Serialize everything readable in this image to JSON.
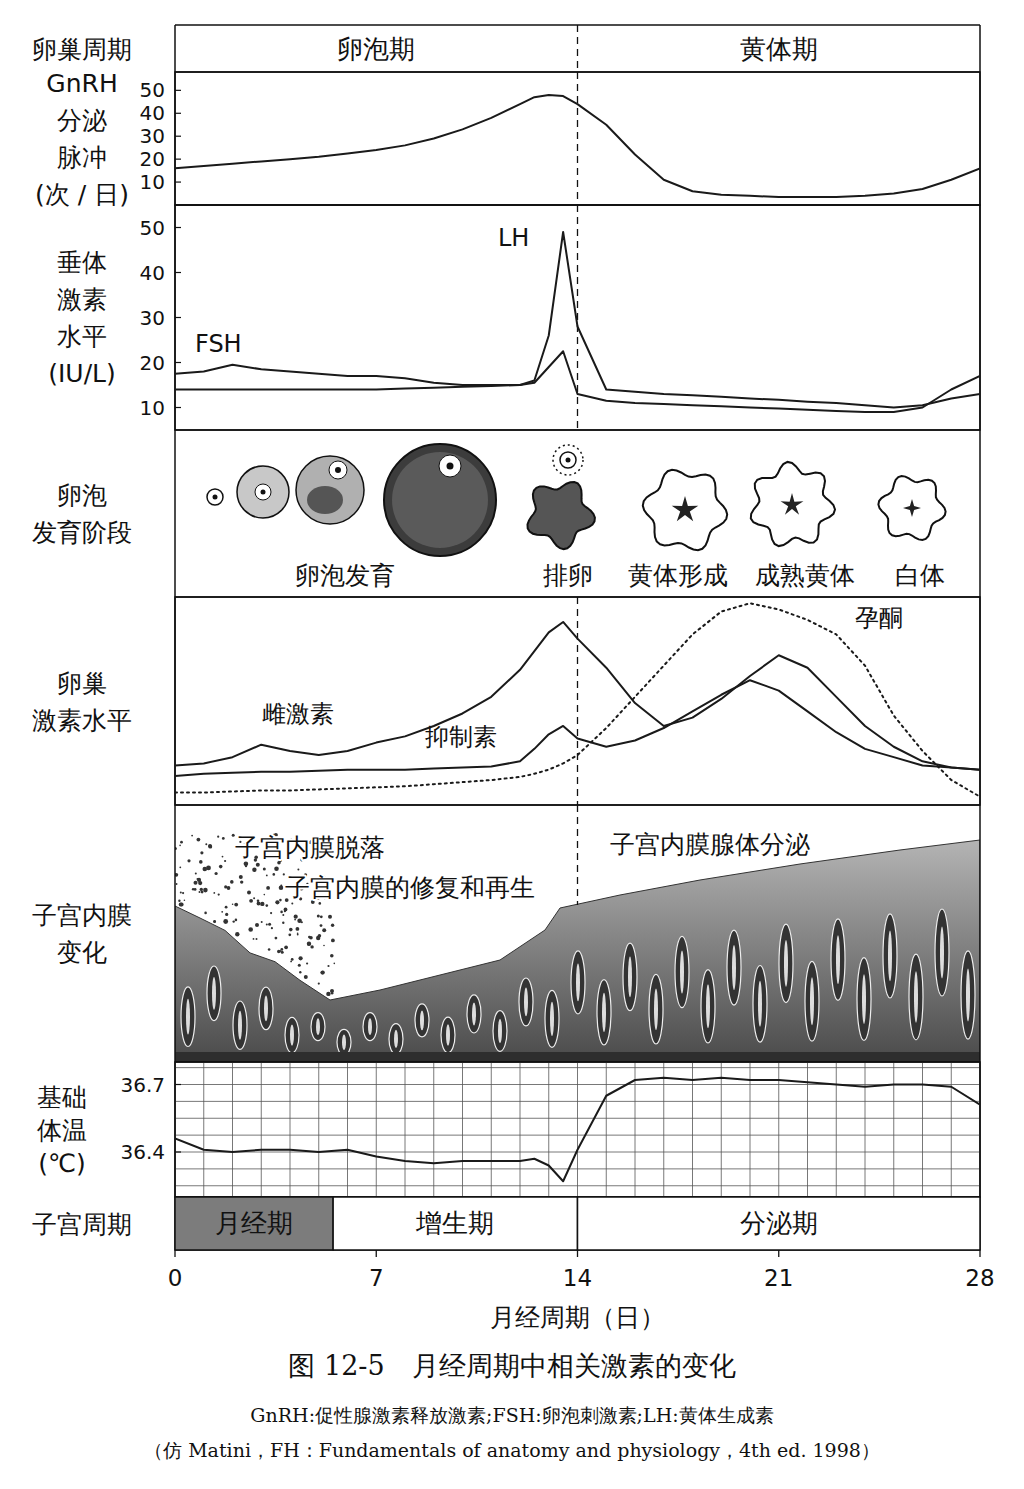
{
  "row_labels": {
    "ovarian_cycle": [
      "卵巢周期"
    ],
    "gnrh": [
      "GnRH",
      "分泌",
      "脉冲",
      "(次 / 日)"
    ],
    "pituitary": [
      "垂体",
      "激素",
      "水平",
      "(IU/L)"
    ],
    "follicle": [
      "卵泡",
      "发育阶段"
    ],
    "ovarian_hormones": [
      "卵巢",
      "激素水平"
    ],
    "endometrium": [
      "子宫内膜",
      "变化"
    ],
    "bbt": [
      "基础",
      "体温",
      "(℃)"
    ],
    "uterine_cycle": [
      "子宫周期"
    ]
  },
  "ovarian_phases": [
    {
      "label": "卵泡期",
      "start": 0,
      "end": 14
    },
    {
      "label": "黄体期",
      "start": 14,
      "end": 28
    }
  ],
  "chart_data": [
    {
      "type": "line",
      "color": "#1a1a1a",
      "xlim": [
        0,
        28
      ],
      "ylim": [
        0,
        58
      ],
      "yticks": [
        10,
        20,
        30,
        40,
        50
      ],
      "tick_labels": "y",
      "grid": false,
      "x": [
        0,
        1,
        2,
        3,
        4,
        5,
        6,
        7,
        8,
        9,
        10,
        11,
        12,
        12.5,
        13,
        13.5,
        14,
        15,
        16,
        17,
        18,
        19,
        20,
        21,
        22,
        23,
        24,
        25,
        26,
        27,
        28
      ],
      "series": [
        {
          "line_style": "solid",
          "values": [
            16,
            17,
            18,
            19,
            20,
            21,
            22.5,
            24,
            26,
            29,
            33,
            38,
            44,
            47,
            48,
            47.5,
            44,
            35,
            22,
            11,
            6,
            4.5,
            4,
            3.5,
            3.5,
            3.5,
            4,
            5,
            7,
            11,
            16
          ]
        }
      ]
    },
    {
      "type": "line",
      "color": "#1a1a1a",
      "xlim": [
        0,
        28
      ],
      "ylim": [
        5,
        55
      ],
      "yticks": [
        10,
        20,
        30,
        40,
        50
      ],
      "tick_labels": "y",
      "grid": false,
      "x": [
        0,
        1,
        2,
        3,
        4,
        5,
        6,
        7,
        8,
        9,
        10,
        11,
        12,
        12.5,
        13,
        13.5,
        14,
        15,
        16,
        17,
        18,
        19,
        20,
        21,
        22,
        23,
        24,
        25,
        26,
        27,
        28
      ],
      "series": [
        {
          "name": "FSH",
          "line_style": "solid",
          "values": [
            17.5,
            18,
            19.5,
            18.5,
            18,
            17.5,
            17,
            17,
            16.5,
            15.5,
            15,
            15,
            15,
            15.5,
            19,
            22.5,
            13,
            11.5,
            11,
            10.8,
            10.5,
            10.3,
            10,
            9.8,
            9.5,
            9.2,
            9,
            9,
            10,
            14,
            17
          ]
        },
        {
          "name": "LH",
          "line_style": "solid",
          "values": [
            14,
            14,
            14,
            14,
            14,
            14,
            14,
            14,
            14.2,
            14.4,
            14.6,
            14.8,
            15,
            16,
            26,
            49,
            28,
            14,
            13.5,
            13,
            12.7,
            12.4,
            12,
            11.7,
            11.3,
            11,
            10.5,
            10,
            10.5,
            12,
            13
          ]
        }
      ]
    },
    {
      "type": "line",
      "color": "#1a1a1a",
      "xlim": [
        0,
        28
      ],
      "ylim": [
        0,
        100
      ],
      "tick_labels": false,
      "grid": false,
      "x": [
        0,
        1,
        2,
        3,
        4,
        5,
        6,
        7,
        8,
        9,
        10,
        11,
        12,
        12.5,
        13,
        13.5,
        14,
        15,
        16,
        17,
        18,
        19,
        20,
        21,
        22,
        23,
        24,
        25,
        26,
        27,
        28
      ],
      "series": [
        {
          "name": "雌激素",
          "line_style": "solid",
          "values": [
            19,
            20,
            23,
            29,
            26,
            24,
            26,
            30,
            33,
            38,
            44,
            52,
            65,
            74,
            83,
            88,
            80,
            66,
            49,
            38,
            42,
            51,
            62,
            72,
            66,
            52,
            38,
            28,
            21,
            18,
            17
          ]
        },
        {
          "name": "抑制素",
          "line_style": "solid",
          "values": [
            14,
            15,
            15.5,
            16,
            16,
            16.5,
            17,
            17,
            17,
            17.5,
            18,
            18.5,
            21,
            27,
            34,
            38,
            32,
            28,
            31,
            37,
            45,
            53,
            60,
            55,
            45,
            35,
            27,
            23,
            19,
            18,
            17
          ]
        },
        {
          "name": "孕酮",
          "line_style": "dotted",
          "values": [
            6,
            6,
            6.5,
            7,
            7,
            7.5,
            8,
            8.5,
            9,
            10,
            11,
            12,
            13.5,
            15,
            17,
            20,
            24,
            37,
            52,
            67,
            82,
            93,
            97,
            94,
            89,
            82,
            67,
            43,
            26,
            12,
            4
          ]
        }
      ]
    },
    {
      "type": "line",
      "color": "#1a1a1a",
      "xlim": [
        0,
        28
      ],
      "ylim": [
        36.2,
        36.8
      ],
      "yticks": [
        36.4,
        36.7
      ],
      "xticks": [
        0,
        7,
        14,
        21,
        28
      ],
      "x_label": "月经周期（日）",
      "tick_labels": true,
      "grid": true,
      "x": [
        0,
        1,
        2,
        3,
        4,
        5,
        6,
        7,
        8,
        9,
        10,
        11,
        12,
        12.5,
        13,
        13.5,
        14,
        15,
        16,
        17,
        18,
        19,
        20,
        21,
        22,
        23,
        24,
        25,
        26,
        27,
        28
      ],
      "series": [
        {
          "line_style": "solid",
          "values": [
            36.46,
            36.41,
            36.4,
            36.41,
            36.41,
            36.4,
            36.41,
            36.38,
            36.36,
            36.35,
            36.36,
            36.36,
            36.36,
            36.37,
            36.34,
            36.27,
            36.41,
            36.65,
            36.72,
            36.73,
            36.72,
            36.73,
            36.72,
            36.72,
            36.71,
            36.7,
            36.69,
            36.7,
            36.7,
            36.69,
            36.61
          ]
        }
      ]
    }
  ],
  "follicle_stages": [
    "卵泡发育",
    "排卵",
    "黄体形成",
    "成熟黄体",
    "白体"
  ],
  "endometrium_labels": [
    "子宫内膜脱落",
    "子宫内膜的修复和再生",
    "子宫内膜腺体分泌"
  ],
  "uterine_phases": [
    {
      "label": "月经期",
      "start": 0,
      "end": 5.5
    },
    {
      "label": "增生期",
      "start": 5.5,
      "end": 14
    },
    {
      "label": "分泌期",
      "start": 14,
      "end": 28
    }
  ],
  "caption": {
    "title": "图 12-5　月经周期中相关激素的变化",
    "note": "GnRH:促性腺激素释放激素;FSH:卵泡刺激素;LH:黄体生成素",
    "source": "（仿 Matini，FH：Fundamentals of anatomy and physiology，4th ed. 1998）"
  }
}
